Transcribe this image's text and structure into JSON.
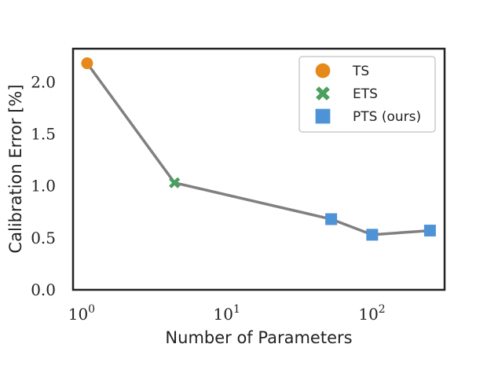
{
  "chart_data": {
    "type": "line",
    "xscale": "log",
    "xlim": [
      0.8,
      290
    ],
    "ylim": [
      0,
      2.32
    ],
    "xlabel": "Number of Parameters",
    "ylabel": "Calibration Error [%]",
    "xticks": [
      {
        "value": 1,
        "base": "10",
        "exp": "0"
      },
      {
        "value": 10,
        "base": "10",
        "exp": "1"
      },
      {
        "value": 100,
        "base": "10",
        "exp": "2"
      }
    ],
    "yticks": [
      {
        "value": 0.0,
        "label": "0.0"
      },
      {
        "value": 0.5,
        "label": "0.5"
      },
      {
        "value": 1.0,
        "label": "1.0"
      },
      {
        "value": 1.5,
        "label": "1.5"
      },
      {
        "value": 2.0,
        "label": "2.0"
      }
    ],
    "grid": false,
    "legend_position": "top-right",
    "line": {
      "color": "#808080",
      "x": [
        1,
        4,
        48,
        92,
        230
      ],
      "y": [
        2.18,
        1.03,
        0.68,
        0.53,
        0.57
      ]
    },
    "series": [
      {
        "name": "TS",
        "marker": "circle",
        "color": "#e6891a",
        "x": [
          1
        ],
        "y": [
          2.18
        ]
      },
      {
        "name": "ETS",
        "marker": "x",
        "color": "#4aa05e",
        "x": [
          4
        ],
        "y": [
          1.03
        ]
      },
      {
        "name": "PTS (ours)",
        "marker": "square",
        "color": "#4e93d6",
        "x": [
          48,
          92,
          230
        ],
        "y": [
          0.68,
          0.53,
          0.57
        ]
      }
    ]
  }
}
